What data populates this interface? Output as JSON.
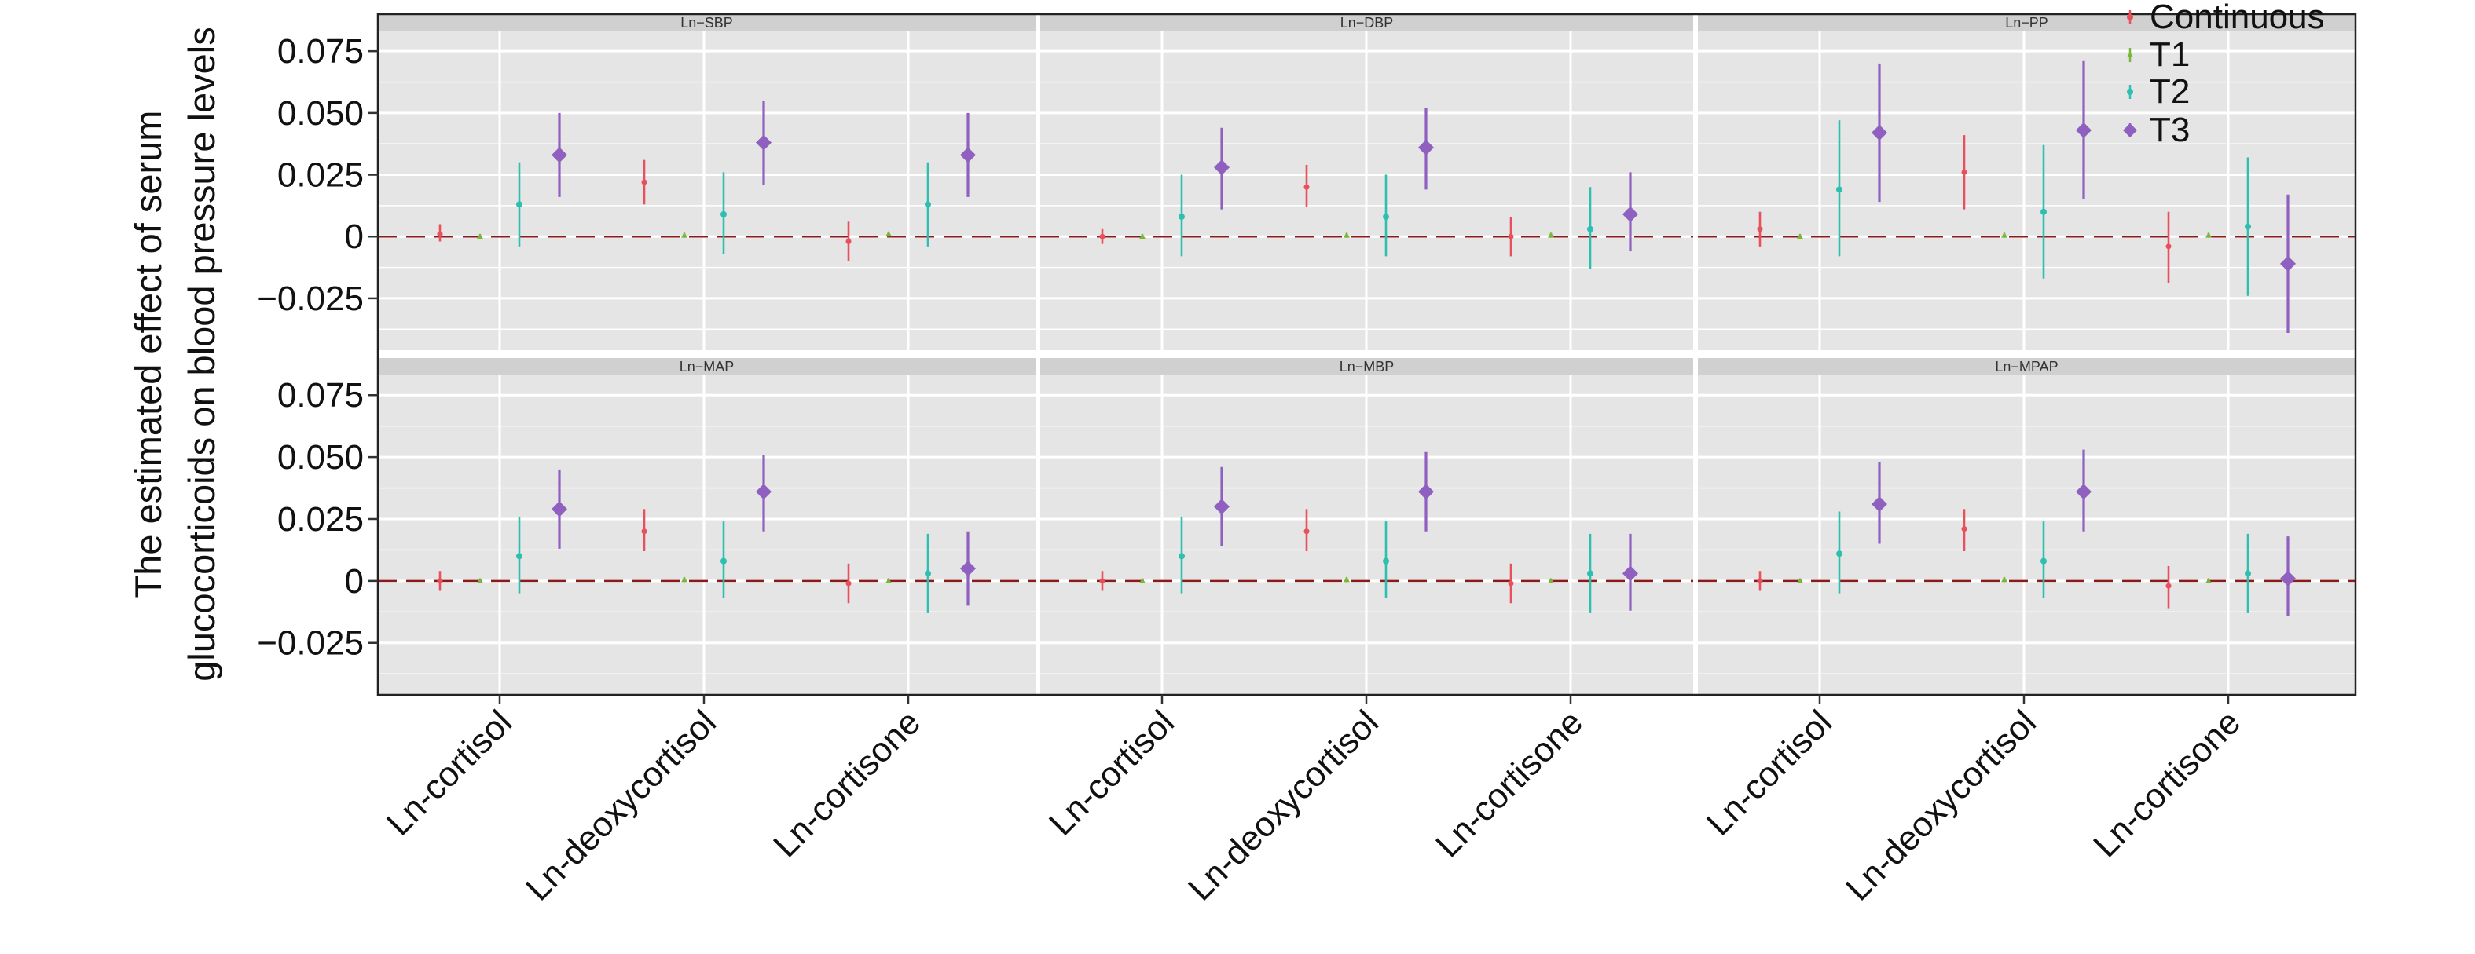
{
  "chart_data": {
    "type": "scatter",
    "ylabel_lines": [
      "The estimated effect of serum",
      "glucocorticoids on blood pressure levels"
    ],
    "y_ticks": [
      0.075,
      0.05,
      0.025,
      0,
      -0.025
    ],
    "y_tick_labels": [
      "0.075",
      "0.050",
      "0.025",
      "0",
      "−0.025"
    ],
    "ylim": [
      -0.046,
      0.083
    ],
    "categories": [
      "Ln-cortisol",
      "Ln-deoxycortisol",
      "Ln-cortisone"
    ],
    "legend": {
      "position": "top-right",
      "entries": [
        "Continuous",
        "T1",
        "T2",
        "T3"
      ]
    },
    "series_colors": {
      "Continuous": "#e8505b",
      "T1": "#7ab63a",
      "T2": "#2ebfb0",
      "T3": "#9060c0"
    },
    "reference_line": {
      "y": 0,
      "color": "#8b1a1a",
      "style": "dashed"
    },
    "panel_colors": {
      "background": "#e5e5e5",
      "strip": "#d0d0d0",
      "grid": "#ffffff"
    },
    "panels": [
      {
        "title": "Ln−SBP",
        "row": 0,
        "col": 0,
        "data": {
          "Continuous": [
            [
              0.001,
              -0.002,
              0.005
            ],
            [
              0.022,
              0.013,
              0.031
            ],
            [
              -0.002,
              -0.01,
              0.006
            ]
          ],
          "T1": [
            [
              0,
              -0.001,
              0.001
            ],
            [
              0.0005,
              -0.0005,
              0.0015
            ],
            [
              0.001,
              0,
              0.002
            ]
          ],
          "T2": [
            [
              0.013,
              -0.004,
              0.03
            ],
            [
              0.009,
              -0.007,
              0.026
            ],
            [
              0.013,
              -0.004,
              0.03
            ]
          ],
          "T3": [
            [
              0.033,
              0.016,
              0.05
            ],
            [
              0.038,
              0.021,
              0.055
            ],
            [
              0.033,
              0.016,
              0.05
            ]
          ]
        }
      },
      {
        "title": "Ln−DBP",
        "row": 0,
        "col": 1,
        "data": {
          "Continuous": [
            [
              0,
              -0.003,
              0.003
            ],
            [
              0.02,
              0.012,
              0.029
            ],
            [
              0,
              -0.008,
              0.008
            ]
          ],
          "T1": [
            [
              0,
              -0.001,
              0.001
            ],
            [
              0.0005,
              -0.0005,
              0.0015
            ],
            [
              0.0005,
              -0.0005,
              0.0015
            ]
          ],
          "T2": [
            [
              0.008,
              -0.008,
              0.025
            ],
            [
              0.008,
              -0.008,
              0.025
            ],
            [
              0.003,
              -0.013,
              0.02
            ]
          ],
          "T3": [
            [
              0.028,
              0.011,
              0.044
            ],
            [
              0.036,
              0.019,
              0.052
            ],
            [
              0.009,
              -0.006,
              0.026
            ]
          ]
        }
      },
      {
        "title": "Ln−PP",
        "row": 0,
        "col": 2,
        "data": {
          "Continuous": [
            [
              0.003,
              -0.004,
              0.01
            ],
            [
              0.026,
              0.011,
              0.041
            ],
            [
              -0.004,
              -0.019,
              0.01
            ]
          ],
          "T1": [
            [
              0,
              -0.001,
              0.001
            ],
            [
              0.0005,
              -0.0005,
              0.0015
            ],
            [
              0.0005,
              -0.0005,
              0.0015
            ]
          ],
          "T2": [
            [
              0.019,
              -0.008,
              0.047
            ],
            [
              0.01,
              -0.017,
              0.037
            ],
            [
              0.004,
              -0.024,
              0.032
            ]
          ],
          "T3": [
            [
              0.042,
              0.014,
              0.07
            ],
            [
              0.043,
              0.015,
              0.071
            ],
            [
              -0.011,
              -0.039,
              0.017
            ]
          ]
        }
      },
      {
        "title": "Ln−MAP",
        "row": 1,
        "col": 0,
        "data": {
          "Continuous": [
            [
              0,
              -0.004,
              0.004
            ],
            [
              0.02,
              0.012,
              0.029
            ],
            [
              -0.001,
              -0.009,
              0.007
            ]
          ],
          "T1": [
            [
              0,
              -0.001,
              0.001
            ],
            [
              0.0005,
              -0.0005,
              0.0015
            ],
            [
              0,
              -0.001,
              0.001
            ]
          ],
          "T2": [
            [
              0.01,
              -0.005,
              0.026
            ],
            [
              0.008,
              -0.007,
              0.024
            ],
            [
              0.003,
              -0.013,
              0.019
            ]
          ],
          "T3": [
            [
              0.029,
              0.013,
              0.045
            ],
            [
              0.036,
              0.02,
              0.051
            ],
            [
              0.005,
              -0.01,
              0.02
            ]
          ]
        }
      },
      {
        "title": "Ln−MBP",
        "row": 1,
        "col": 1,
        "data": {
          "Continuous": [
            [
              0,
              -0.004,
              0.004
            ],
            [
              0.02,
              0.012,
              0.029
            ],
            [
              -0.001,
              -0.009,
              0.007
            ]
          ],
          "T1": [
            [
              0,
              -0.001,
              0.001
            ],
            [
              0.0005,
              -0.0005,
              0.0015
            ],
            [
              0,
              -0.001,
              0.001
            ]
          ],
          "T2": [
            [
              0.01,
              -0.005,
              0.026
            ],
            [
              0.008,
              -0.007,
              0.024
            ],
            [
              0.003,
              -0.013,
              0.019
            ]
          ],
          "T3": [
            [
              0.03,
              0.014,
              0.046
            ],
            [
              0.036,
              0.02,
              0.052
            ],
            [
              0.003,
              -0.012,
              0.019
            ]
          ]
        }
      },
      {
        "title": "Ln−MPAP",
        "row": 1,
        "col": 2,
        "data": {
          "Continuous": [
            [
              0,
              -0.004,
              0.004
            ],
            [
              0.021,
              0.012,
              0.029
            ],
            [
              -0.002,
              -0.011,
              0.006
            ]
          ],
          "T1": [
            [
              0,
              -0.001,
              0.001
            ],
            [
              0.0005,
              -0.0005,
              0.0015
            ],
            [
              0,
              -0.001,
              0.001
            ]
          ],
          "T2": [
            [
              0.011,
              -0.005,
              0.028
            ],
            [
              0.008,
              -0.007,
              0.024
            ],
            [
              0.003,
              -0.013,
              0.019
            ]
          ],
          "T3": [
            [
              0.031,
              0.015,
              0.048
            ],
            [
              0.036,
              0.02,
              0.053
            ],
            [
              0.001,
              -0.014,
              0.018
            ]
          ]
        }
      }
    ]
  }
}
